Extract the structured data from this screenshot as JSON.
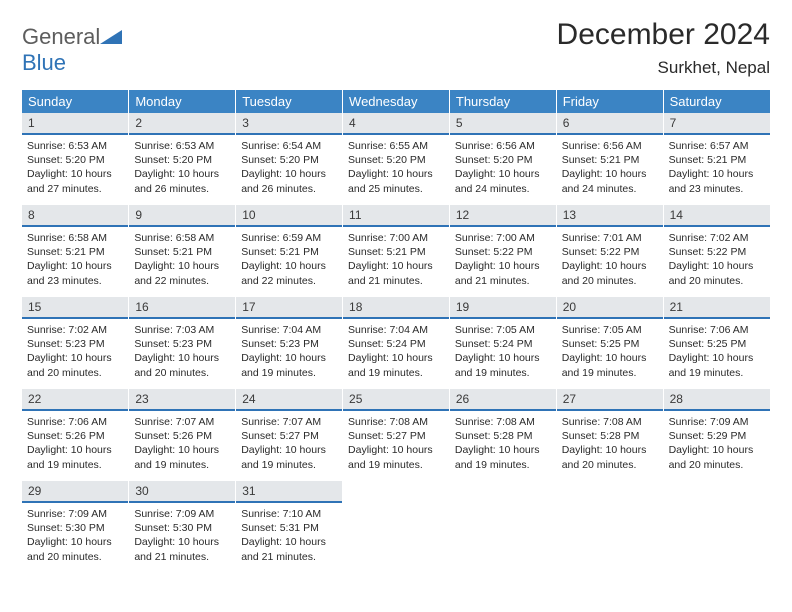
{
  "logo": {
    "part1": "General",
    "part2": "Blue"
  },
  "title": "December 2024",
  "location": "Surkhet, Nepal",
  "colors": {
    "header_bg": "#3b84c4",
    "daynum_bg": "#e4e7ea",
    "accent": "#2f73b6",
    "text": "#2a2a2a"
  },
  "weekdays": [
    "Sunday",
    "Monday",
    "Tuesday",
    "Wednesday",
    "Thursday",
    "Friday",
    "Saturday"
  ],
  "days": [
    {
      "n": "1",
      "sr": "6:53 AM",
      "ss": "5:20 PM",
      "dl": "10 hours and 27 minutes."
    },
    {
      "n": "2",
      "sr": "6:53 AM",
      "ss": "5:20 PM",
      "dl": "10 hours and 26 minutes."
    },
    {
      "n": "3",
      "sr": "6:54 AM",
      "ss": "5:20 PM",
      "dl": "10 hours and 26 minutes."
    },
    {
      "n": "4",
      "sr": "6:55 AM",
      "ss": "5:20 PM",
      "dl": "10 hours and 25 minutes."
    },
    {
      "n": "5",
      "sr": "6:56 AM",
      "ss": "5:20 PM",
      "dl": "10 hours and 24 minutes."
    },
    {
      "n": "6",
      "sr": "6:56 AM",
      "ss": "5:21 PM",
      "dl": "10 hours and 24 minutes."
    },
    {
      "n": "7",
      "sr": "6:57 AM",
      "ss": "5:21 PM",
      "dl": "10 hours and 23 minutes."
    },
    {
      "n": "8",
      "sr": "6:58 AM",
      "ss": "5:21 PM",
      "dl": "10 hours and 23 minutes."
    },
    {
      "n": "9",
      "sr": "6:58 AM",
      "ss": "5:21 PM",
      "dl": "10 hours and 22 minutes."
    },
    {
      "n": "10",
      "sr": "6:59 AM",
      "ss": "5:21 PM",
      "dl": "10 hours and 22 minutes."
    },
    {
      "n": "11",
      "sr": "7:00 AM",
      "ss": "5:21 PM",
      "dl": "10 hours and 21 minutes."
    },
    {
      "n": "12",
      "sr": "7:00 AM",
      "ss": "5:22 PM",
      "dl": "10 hours and 21 minutes."
    },
    {
      "n": "13",
      "sr": "7:01 AM",
      "ss": "5:22 PM",
      "dl": "10 hours and 20 minutes."
    },
    {
      "n": "14",
      "sr": "7:02 AM",
      "ss": "5:22 PM",
      "dl": "10 hours and 20 minutes."
    },
    {
      "n": "15",
      "sr": "7:02 AM",
      "ss": "5:23 PM",
      "dl": "10 hours and 20 minutes."
    },
    {
      "n": "16",
      "sr": "7:03 AM",
      "ss": "5:23 PM",
      "dl": "10 hours and 20 minutes."
    },
    {
      "n": "17",
      "sr": "7:04 AM",
      "ss": "5:23 PM",
      "dl": "10 hours and 19 minutes."
    },
    {
      "n": "18",
      "sr": "7:04 AM",
      "ss": "5:24 PM",
      "dl": "10 hours and 19 minutes."
    },
    {
      "n": "19",
      "sr": "7:05 AM",
      "ss": "5:24 PM",
      "dl": "10 hours and 19 minutes."
    },
    {
      "n": "20",
      "sr": "7:05 AM",
      "ss": "5:25 PM",
      "dl": "10 hours and 19 minutes."
    },
    {
      "n": "21",
      "sr": "7:06 AM",
      "ss": "5:25 PM",
      "dl": "10 hours and 19 minutes."
    },
    {
      "n": "22",
      "sr": "7:06 AM",
      "ss": "5:26 PM",
      "dl": "10 hours and 19 minutes."
    },
    {
      "n": "23",
      "sr": "7:07 AM",
      "ss": "5:26 PM",
      "dl": "10 hours and 19 minutes."
    },
    {
      "n": "24",
      "sr": "7:07 AM",
      "ss": "5:27 PM",
      "dl": "10 hours and 19 minutes."
    },
    {
      "n": "25",
      "sr": "7:08 AM",
      "ss": "5:27 PM",
      "dl": "10 hours and 19 minutes."
    },
    {
      "n": "26",
      "sr": "7:08 AM",
      "ss": "5:28 PM",
      "dl": "10 hours and 19 minutes."
    },
    {
      "n": "27",
      "sr": "7:08 AM",
      "ss": "5:28 PM",
      "dl": "10 hours and 20 minutes."
    },
    {
      "n": "28",
      "sr": "7:09 AM",
      "ss": "5:29 PM",
      "dl": "10 hours and 20 minutes."
    },
    {
      "n": "29",
      "sr": "7:09 AM",
      "ss": "5:30 PM",
      "dl": "10 hours and 20 minutes."
    },
    {
      "n": "30",
      "sr": "7:09 AM",
      "ss": "5:30 PM",
      "dl": "10 hours and 21 minutes."
    },
    {
      "n": "31",
      "sr": "7:10 AM",
      "ss": "5:31 PM",
      "dl": "10 hours and 21 minutes."
    }
  ],
  "labels": {
    "sunrise": "Sunrise:",
    "sunset": "Sunset:",
    "daylight": "Daylight:"
  },
  "layout": {
    "start_weekday": 0,
    "total_cells": 35
  }
}
